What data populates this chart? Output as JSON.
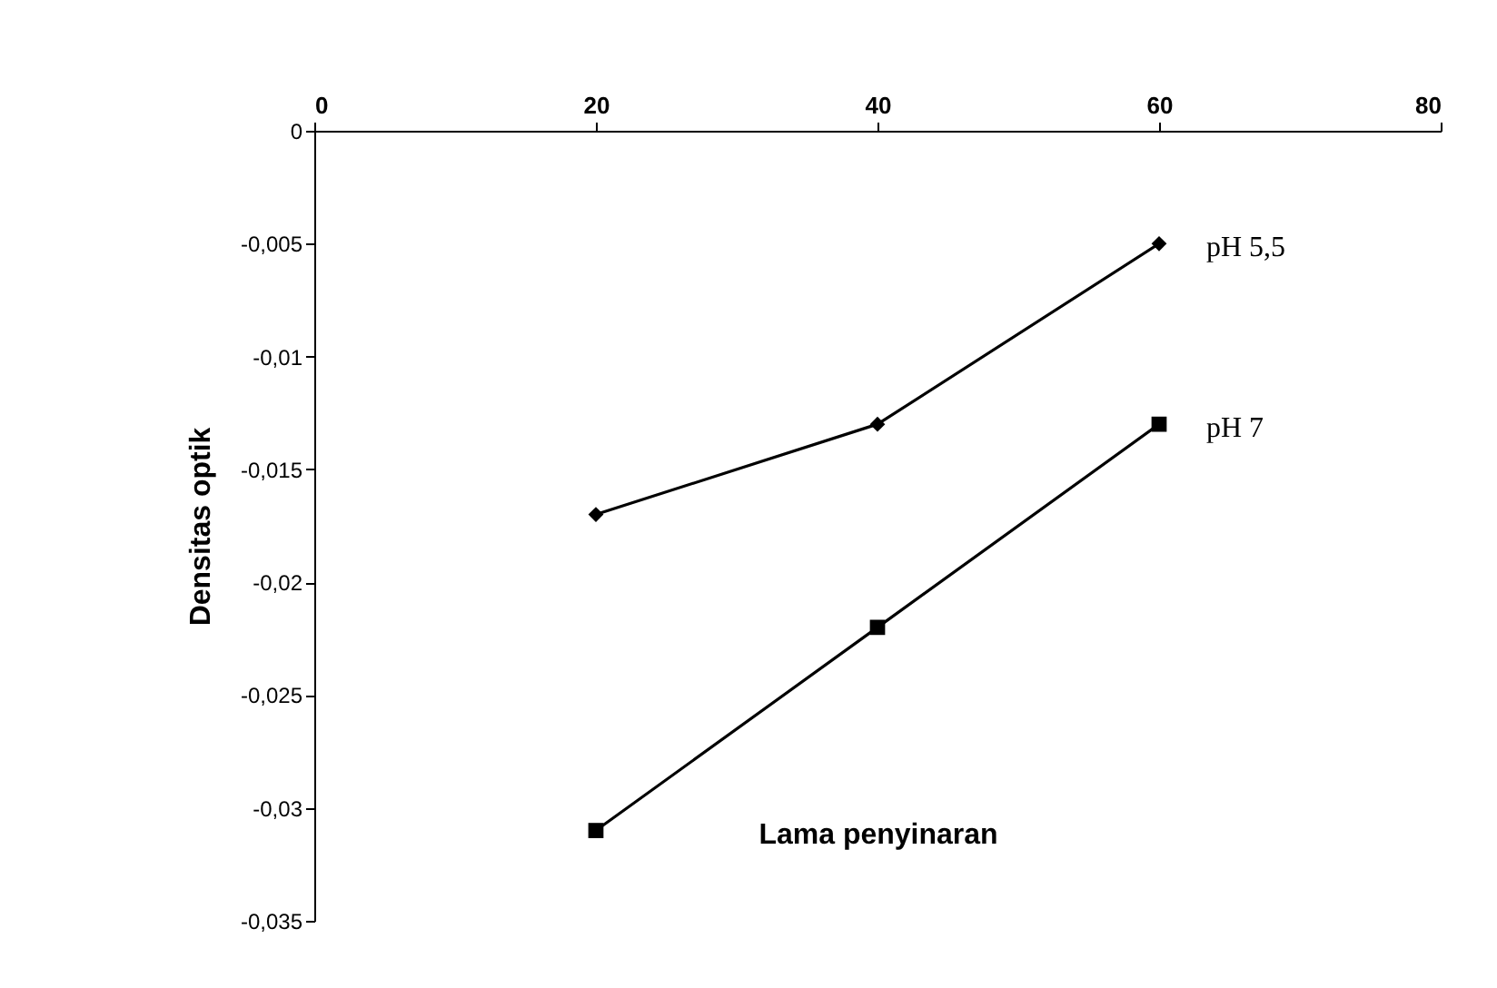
{
  "chart_data": {
    "type": "line",
    "xlabel": "Lama penyinaran",
    "ylabel": "Densitas optik",
    "x": [
      20,
      40,
      60
    ],
    "series": [
      {
        "name": "pH 5,5",
        "color": "#000000",
        "marker": "diamond",
        "values": [
          -0.017,
          -0.013,
          -0.005
        ]
      },
      {
        "name": "pH 7",
        "color": "#000000",
        "marker": "square",
        "values": [
          -0.031,
          -0.022,
          -0.013
        ]
      }
    ],
    "xlim": [
      0,
      80
    ],
    "xticks": [
      0,
      20,
      40,
      60,
      80
    ],
    "ylim": [
      -0.035,
      0
    ],
    "yticks": [
      0,
      {
        "value": -0.005,
        "label": "-0,005"
      },
      {
        "value": -0.01,
        "label": "-0,01"
      },
      {
        "value": -0.015,
        "label": "-0,015"
      },
      {
        "value": -0.02,
        "label": "-0,02"
      },
      {
        "value": -0.025,
        "label": "-0,025"
      },
      {
        "value": -0.03,
        "label": "-0,03"
      },
      {
        "value": -0.035,
        "label": "-0,035"
      }
    ],
    "grid": false,
    "legend": false,
    "line_style": "solid"
  }
}
